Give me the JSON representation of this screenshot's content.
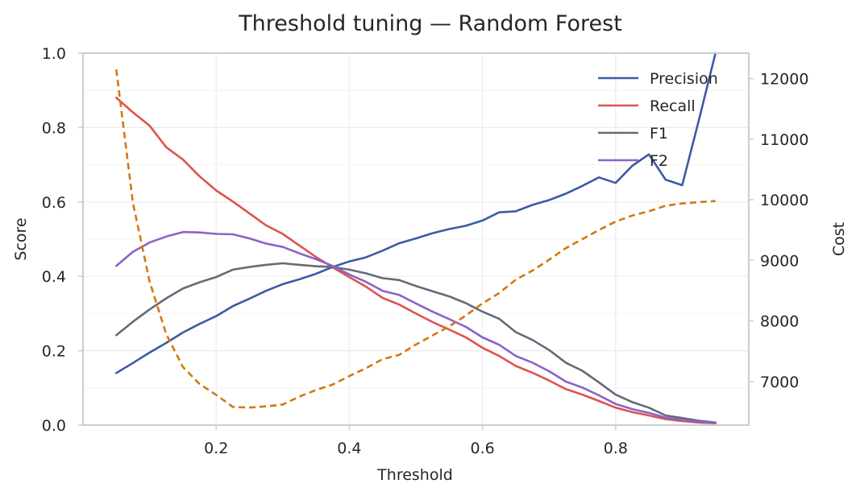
{
  "chart_data": {
    "type": "line",
    "title": "Threshold tuning — Random Forest",
    "xlabel": "Threshold",
    "ylabel": "Score",
    "y2label": "Cost",
    "xlim": [
      0.0,
      1.0
    ],
    "ylim": [
      0.0,
      1.0
    ],
    "y2lim": [
      6280,
      12420
    ],
    "xticks": [
      0.2,
      0.4,
      0.6,
      0.8
    ],
    "yticks": [
      0.0,
      0.2,
      0.4,
      0.6,
      0.8,
      1.0
    ],
    "y2ticks": [
      7000,
      8000,
      9000,
      10000,
      11000,
      12000
    ],
    "grid": true,
    "legend_position": "top-right",
    "x": [
      0.05,
      0.075,
      0.1,
      0.125,
      0.15,
      0.175,
      0.2,
      0.225,
      0.25,
      0.275,
      0.3,
      0.325,
      0.35,
      0.375,
      0.4,
      0.425,
      0.45,
      0.475,
      0.5,
      0.525,
      0.55,
      0.575,
      0.6,
      0.625,
      0.65,
      0.675,
      0.7,
      0.725,
      0.75,
      0.775,
      0.8,
      0.825,
      0.85,
      0.875,
      0.9,
      0.925,
      0.95
    ],
    "series": [
      {
        "name": "Precision",
        "color": "#3b5ba5",
        "style": "solid",
        "axis": "left",
        "values": [
          0.14,
          0.167,
          0.195,
          0.221,
          0.249,
          0.272,
          0.293,
          0.32,
          0.34,
          0.361,
          0.379,
          0.392,
          0.407,
          0.425,
          0.44,
          0.451,
          0.469,
          0.489,
          0.502,
          0.516,
          0.527,
          0.536,
          0.55,
          0.572,
          0.575,
          0.592,
          0.605,
          0.622,
          0.643,
          0.666,
          0.651,
          0.697,
          0.728,
          0.66,
          0.645,
          0.82,
          1.0
        ]
      },
      {
        "name": "Recall",
        "color": "#dd5350",
        "style": "solid",
        "axis": "left",
        "values": [
          0.88,
          0.841,
          0.805,
          0.747,
          0.714,
          0.669,
          0.631,
          0.601,
          0.569,
          0.537,
          0.514,
          0.483,
          0.452,
          0.424,
          0.398,
          0.372,
          0.342,
          0.324,
          0.3,
          0.277,
          0.257,
          0.236,
          0.208,
          0.186,
          0.159,
          0.141,
          0.12,
          0.097,
          0.082,
          0.065,
          0.047,
          0.035,
          0.026,
          0.016,
          0.011,
          0.007,
          0.005
        ]
      },
      {
        "name": "F1",
        "color": "#656a78",
        "style": "solid",
        "axis": "left",
        "values": [
          0.242,
          0.278,
          0.311,
          0.341,
          0.367,
          0.384,
          0.398,
          0.418,
          0.425,
          0.431,
          0.435,
          0.431,
          0.427,
          0.425,
          0.418,
          0.408,
          0.395,
          0.39,
          0.374,
          0.36,
          0.346,
          0.328,
          0.305,
          0.286,
          0.25,
          0.229,
          0.202,
          0.168,
          0.146,
          0.115,
          0.082,
          0.062,
          0.047,
          0.026,
          0.019,
          0.012,
          0.007
        ]
      },
      {
        "name": "F2",
        "color": "#8a63c9",
        "style": "solid",
        "axis": "left",
        "values": [
          0.428,
          0.466,
          0.491,
          0.507,
          0.519,
          0.518,
          0.514,
          0.513,
          0.502,
          0.488,
          0.479,
          0.462,
          0.446,
          0.428,
          0.405,
          0.385,
          0.361,
          0.35,
          0.327,
          0.305,
          0.285,
          0.264,
          0.236,
          0.216,
          0.186,
          0.168,
          0.145,
          0.117,
          0.101,
          0.08,
          0.057,
          0.043,
          0.033,
          0.02,
          0.014,
          0.009,
          0.006
        ]
      },
      {
        "name": "",
        "color": "#d6770f",
        "style": "dashed",
        "axis": "right",
        "values": [
          12150,
          9950,
          8650,
          7780,
          7240,
          6960,
          6780,
          6580,
          6570,
          6590,
          6620,
          6750,
          6860,
          6950,
          7090,
          7220,
          7370,
          7440,
          7610,
          7760,
          7910,
          8090,
          8290,
          8460,
          8680,
          8830,
          9010,
          9200,
          9350,
          9500,
          9640,
          9740,
          9810,
          9900,
          9940,
          9960,
          9980
        ]
      }
    ]
  }
}
